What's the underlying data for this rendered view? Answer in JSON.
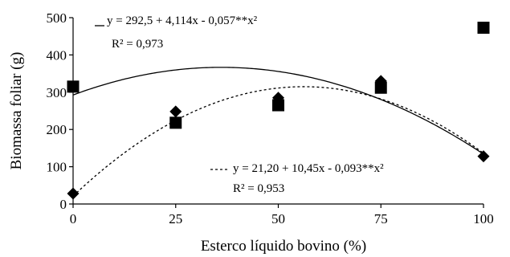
{
  "chart_data": {
    "type": "scatter",
    "xlabel": "Esterco líquido bovino (%)",
    "ylabel": "Biomassa foliar (g)",
    "xlim": [
      0,
      100
    ],
    "ylim": [
      0,
      500
    ],
    "xticks": [
      "0",
      "25",
      "50",
      "75",
      "100"
    ],
    "yticks": [
      "0",
      "100",
      "200",
      "300",
      "400",
      "500"
    ],
    "grid": false,
    "series": [
      {
        "marker": "square",
        "line_style": "solid",
        "x": [
          0,
          25,
          50,
          75,
          100
        ],
        "y": [
          315,
          218,
          265,
          312,
          473
        ],
        "equation": "y = 292,5 + 4,114x - 0,057**x²",
        "r2": "R² = 0,973",
        "coefficients": [
          292.5,
          4.114,
          -0.057
        ]
      },
      {
        "marker": "diamond",
        "line_style": "dashed",
        "x": [
          0,
          25,
          50,
          75,
          100
        ],
        "y": [
          28,
          248,
          285,
          330,
          128
        ],
        "equation": "y = 21,20 + 10,45x - 0,093**x²",
        "r2": "R² = 0,953",
        "coefficients": [
          21.2,
          10.45,
          -0.093
        ]
      }
    ]
  }
}
